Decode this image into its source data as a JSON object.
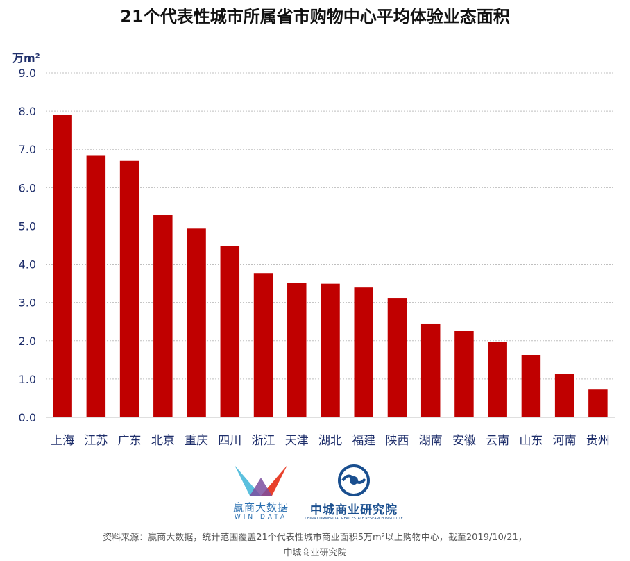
{
  "chart_data": {
    "type": "bar",
    "title": "21个代表性城市所属省市购物中心平均体验业态面积",
    "ylabel": "万m²",
    "xlabel": "",
    "ylim": [
      0,
      9.0
    ],
    "y_ticks": [
      "0.0",
      "1.0",
      "2.0",
      "3.0",
      "4.0",
      "5.0",
      "6.0",
      "7.0",
      "8.0",
      "9.0"
    ],
    "grid": true,
    "categories": [
      "上海",
      "江苏",
      "广东",
      "北京",
      "重庆",
      "四川",
      "浙江",
      "天津",
      "湖北",
      "福建",
      "陕西",
      "湖南",
      "安徽",
      "云南",
      "山东",
      "河南",
      "贵州"
    ],
    "values": [
      7.9,
      6.85,
      6.7,
      5.28,
      4.93,
      4.48,
      3.77,
      3.51,
      3.49,
      3.39,
      3.12,
      2.45,
      2.25,
      1.96,
      1.63,
      1.13,
      0.74
    ],
    "bar_color": "#c00000",
    "grid_color": "#bfbfbf"
  },
  "logos": {
    "windata_cn": "赢商大数据",
    "windata_en": "WIN DATA",
    "ccreri_cn": "中城商业研究院",
    "ccreri_en": "CHINA COMMERCIAL REAL ESTATE RESEARCH INSTITUTE"
  },
  "source": {
    "line1": "资料来源：赢商大数据，统计范围覆盖21个代表性城市商业面积5万m²以上购物中心，截至2019/10/21，",
    "line2": "中城商业研究院"
  }
}
